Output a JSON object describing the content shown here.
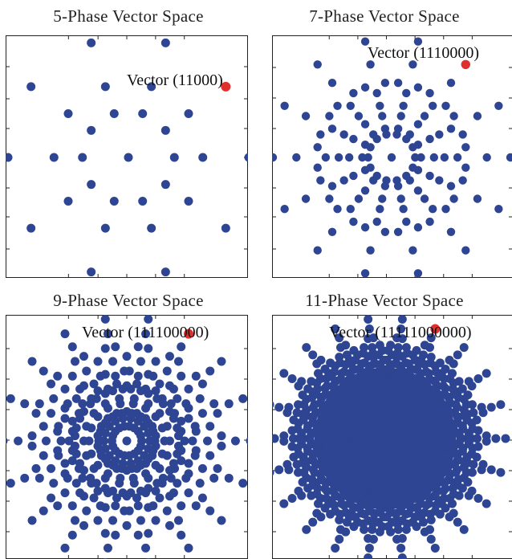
{
  "colors": {
    "dot": "#2e4593",
    "highlight": "#e0302e",
    "axis": "#222222",
    "background": "#ffffff"
  },
  "chart_data": [
    {
      "type": "scatter",
      "title": "5-Phase Vector Space",
      "annotation": "Vector (11000)",
      "phases": 5,
      "highlight_vector": "11000",
      "grid": false,
      "legend": "none"
    },
    {
      "type": "scatter",
      "title": "7-Phase Vector Space",
      "annotation": "Vector (1110000)",
      "phases": 7,
      "highlight_vector": "1110000",
      "grid": false,
      "legend": "none"
    },
    {
      "type": "scatter",
      "title": "9-Phase Vector Space",
      "annotation": "Vector (111100000)",
      "phases": 9,
      "highlight_vector": "111100000",
      "grid": false,
      "legend": "none"
    },
    {
      "type": "scatter",
      "title": "11-Phase Vector Space",
      "annotation": "Vector (11111000000)",
      "phases": 11,
      "highlight_vector": "11111000000",
      "grid": false,
      "legend": "none"
    }
  ]
}
